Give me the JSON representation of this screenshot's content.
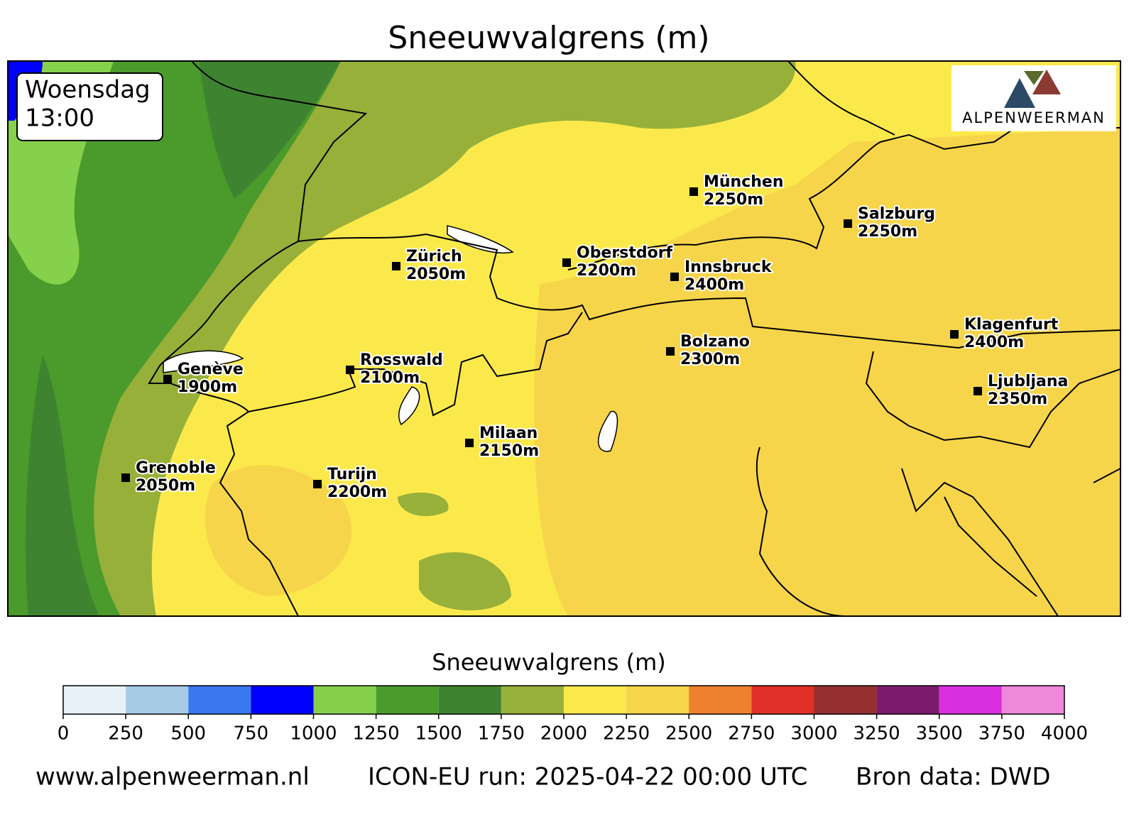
{
  "title": "Sneeuwvalgrens (m)",
  "time_box": {
    "day": "Woensdag",
    "time": "13:00"
  },
  "logo": "ALPENWEERMAN",
  "cities": [
    {
      "name": "München",
      "snowline": "2250m"
    },
    {
      "name": "Salzburg",
      "snowline": "2250m"
    },
    {
      "name": "Zürich",
      "snowline": "2050m"
    },
    {
      "name": "Oberstdorf",
      "snowline": "2200m"
    },
    {
      "name": "Innsbruck",
      "snowline": "2400m"
    },
    {
      "name": "Klagenfurt",
      "snowline": "2400m"
    },
    {
      "name": "Bolzano",
      "snowline": "2300m"
    },
    {
      "name": "Ljubljana",
      "snowline": "2350m"
    },
    {
      "name": "Rosswald",
      "snowline": "2100m"
    },
    {
      "name": "Genève",
      "snowline": "1900m"
    },
    {
      "name": "Milaan",
      "snowline": "2150m"
    },
    {
      "name": "Grenoble",
      "snowline": "2050m"
    },
    {
      "name": "Turijn",
      "snowline": "2200m"
    }
  ],
  "colorbar": {
    "label": "Sneeuwvalgrens (m)",
    "ticks": [
      0,
      250,
      500,
      750,
      1000,
      1250,
      1500,
      1750,
      2000,
      2250,
      2500,
      2750,
      3000,
      3250,
      3500,
      3750,
      4000
    ],
    "colors": [
      "#e8f1f8",
      "#a6cbe6",
      "#3b78f0",
      "#0000ff",
      "#86d14c",
      "#4a9a2c",
      "#3e8430",
      "#97b03a",
      "#fbe94c",
      "#f7d54a",
      "#ef8030",
      "#e03028",
      "#953030",
      "#7c1a6c",
      "#d830e0",
      "#ee88d8"
    ]
  },
  "footer": {
    "website": "www.alpenweerman.nl",
    "run": "ICON-EU run: 2025-04-22 00:00 UTC",
    "source": "Bron data: DWD"
  }
}
